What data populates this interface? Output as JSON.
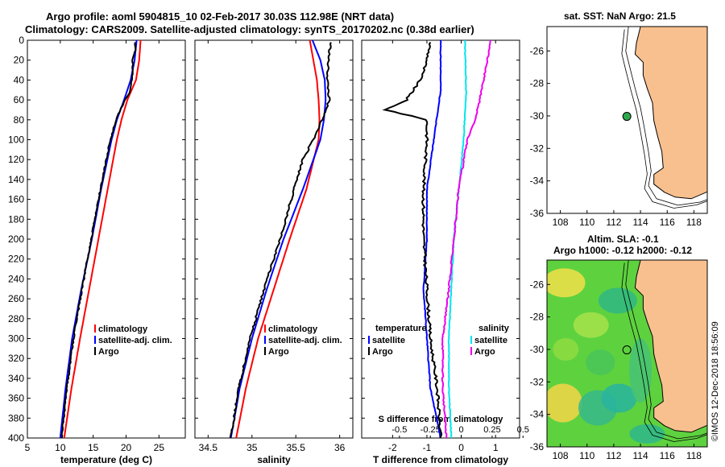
{
  "title": {
    "line1": "Argo profile: aoml 5904815_10 02-Feb-2017 30.03S 112.98E (NRT data)",
    "line2": "Climatology: CARS2009. Satellite-adjusted climatology: synTS_20170202.nc (0.38d earlier)"
  },
  "watermark": "©IMOS 12-Dec-2018 18:56:09",
  "colors": {
    "clim": "#ff0000",
    "sat": "#0000ff",
    "argo": "#000000",
    "sat_s": "#00e5ee",
    "argo_s": "#ee00ee",
    "land": "#f9c08f"
  },
  "chart_data": [
    {
      "type": "line",
      "panel": "temperature",
      "xlabel": "temperature (deg C)",
      "ylabel": "",
      "xlim": [
        5,
        29
      ],
      "ylim": [
        400,
        0
      ],
      "xticks": [
        5,
        10,
        15,
        20,
        25
      ],
      "yticks": [
        0,
        20,
        40,
        60,
        80,
        100,
        120,
        140,
        160,
        180,
        200,
        220,
        240,
        260,
        280,
        300,
        320,
        340,
        360,
        380,
        400
      ],
      "legend": [
        "climatology",
        "satellite-adj. clim.",
        "Argo"
      ],
      "series": [
        {
          "name": "climatology",
          "color": "red",
          "depth": [
            0,
            20,
            40,
            60,
            80,
            100,
            150,
            200,
            250,
            300,
            350,
            400
          ],
          "values": [
            22.2,
            22.0,
            21.5,
            20.2,
            19.3,
            18.6,
            17.2,
            15.8,
            14.4,
            13.0,
            11.7,
            10.6
          ]
        },
        {
          "name": "satellite-adj. clim.",
          "color": "blue",
          "depth": [
            0,
            20,
            40,
            60,
            80,
            100,
            150,
            200,
            250,
            300,
            350,
            400
          ],
          "values": [
            21.6,
            21.3,
            20.7,
            19.7,
            18.6,
            17.8,
            16.2,
            14.8,
            13.2,
            11.8,
            10.8,
            10.0
          ]
        },
        {
          "name": "Argo",
          "color": "black",
          "depth": [
            2,
            10,
            20,
            40,
            50,
            60,
            70,
            80,
            100,
            150,
            200,
            250,
            300,
            350,
            400
          ],
          "values": [
            21.3,
            21.4,
            21.0,
            20.9,
            20.7,
            19.9,
            19.1,
            18.5,
            17.6,
            16.1,
            14.7,
            13.3,
            12.0,
            11.0,
            10.2
          ]
        }
      ]
    },
    {
      "type": "line",
      "panel": "salinity",
      "xlabel": "salinity",
      "ylabel": "",
      "xlim": [
        34.35,
        36.15
      ],
      "ylim": [
        400,
        0
      ],
      "xticks": [
        34.5,
        35,
        35.5,
        36
      ],
      "legend": [
        "climatology",
        "satellite-adj. clim.",
        "Argo"
      ],
      "series": [
        {
          "name": "climatology",
          "color": "red",
          "depth": [
            0,
            20,
            40,
            60,
            80,
            100,
            150,
            200,
            250,
            300,
            350,
            400
          ],
          "values": [
            35.66,
            35.7,
            35.74,
            35.76,
            35.77,
            35.76,
            35.62,
            35.43,
            35.25,
            35.07,
            34.93,
            34.82
          ]
        },
        {
          "name": "satellite-adj. clim.",
          "color": "blue",
          "depth": [
            0,
            20,
            40,
            60,
            80,
            100,
            150,
            200,
            250,
            300,
            350,
            400
          ],
          "values": [
            35.69,
            35.78,
            35.83,
            35.84,
            35.82,
            35.78,
            35.58,
            35.36,
            35.17,
            35.0,
            34.86,
            34.76
          ]
        },
        {
          "name": "Argo",
          "color": "black",
          "depth": [
            2,
            20,
            40,
            60,
            80,
            100,
            120,
            150,
            200,
            250,
            300,
            350,
            400
          ],
          "values": [
            35.9,
            35.87,
            35.86,
            35.88,
            35.8,
            35.7,
            35.58,
            35.48,
            35.32,
            35.14,
            34.98,
            34.85,
            34.76
          ]
        }
      ]
    },
    {
      "type": "line",
      "panel": "difference",
      "xlabel": "T difference from climatology",
      "xlabel2": "S difference from climatology",
      "xlim": [
        -2.9,
        1.7
      ],
      "ylim": [
        400,
        0
      ],
      "xticks": [
        -2,
        -1,
        0,
        1
      ],
      "xticks2_labels": [
        "-0.5",
        "-0.25",
        "0",
        "0.25",
        "0.5"
      ],
      "legend_temperature_title": "temperature",
      "legend_salinity_title": "salinity",
      "legend": [
        "satellite",
        "Argo",
        "satellite",
        "Argo"
      ],
      "series": [
        {
          "name": "temperature satellite",
          "color": "blue",
          "depth": [
            0,
            50,
            100,
            150,
            200,
            250,
            300,
            350,
            400
          ],
          "values": [
            -0.6,
            -0.6,
            -0.8,
            -1.0,
            -1.0,
            -1.1,
            -1.0,
            -0.9,
            -0.6
          ]
        },
        {
          "name": "temperature Argo",
          "color": "black",
          "depth": [
            2,
            20,
            40,
            60,
            70,
            80,
            100,
            150,
            200,
            250,
            300,
            350,
            400
          ],
          "values": [
            -0.9,
            -1.0,
            -1.2,
            -1.6,
            -2.2,
            -1.0,
            -1.0,
            -1.1,
            -1.1,
            -1.0,
            -0.9,
            -0.7,
            -0.6
          ]
        },
        {
          "name": "salinity satellite",
          "color": "cyan",
          "depth": [
            0,
            50,
            100,
            150,
            200,
            250,
            300,
            350,
            400
          ],
          "values": [
            0.03,
            0.04,
            0.02,
            -0.02,
            -0.06,
            -0.08,
            -0.1,
            -0.1,
            -0.08
          ]
        },
        {
          "name": "salinity Argo",
          "color": "magenta",
          "depth": [
            0,
            40,
            60,
            80,
            100,
            150,
            200,
            250,
            300,
            350,
            400
          ],
          "values": [
            0.24,
            0.18,
            0.15,
            0.11,
            0.05,
            -0.02,
            -0.06,
            -0.1,
            -0.15,
            -0.15,
            -0.12
          ]
        }
      ]
    },
    {
      "type": "map",
      "panel": "sat SST map",
      "title": "sat. SST: NaN Argo: 21.5",
      "xlim": [
        107,
        119
      ],
      "ylim": [
        -36,
        -24.5
      ],
      "xticks": [
        108,
        110,
        112,
        114,
        116,
        118
      ],
      "yticks": [
        -26,
        -28,
        -30,
        -32,
        -34,
        -36
      ],
      "argo_position": {
        "lon": 112.98,
        "lat": -30.03
      }
    },
    {
      "type": "heatmap",
      "panel": "altimetry SLA map",
      "title1": "Altim. SLA: -0.1",
      "title2": "Argo h1000: -0.12 h2000: -0.12",
      "xlim": [
        107,
        119
      ],
      "ylim": [
        -36,
        -24.5
      ],
      "xticks": [
        108,
        110,
        112,
        114,
        116,
        118
      ],
      "yticks": [
        -26,
        -28,
        -30,
        -32,
        -34,
        -36
      ],
      "argo_position": {
        "lon": 112.98,
        "lat": -30.03
      }
    }
  ]
}
